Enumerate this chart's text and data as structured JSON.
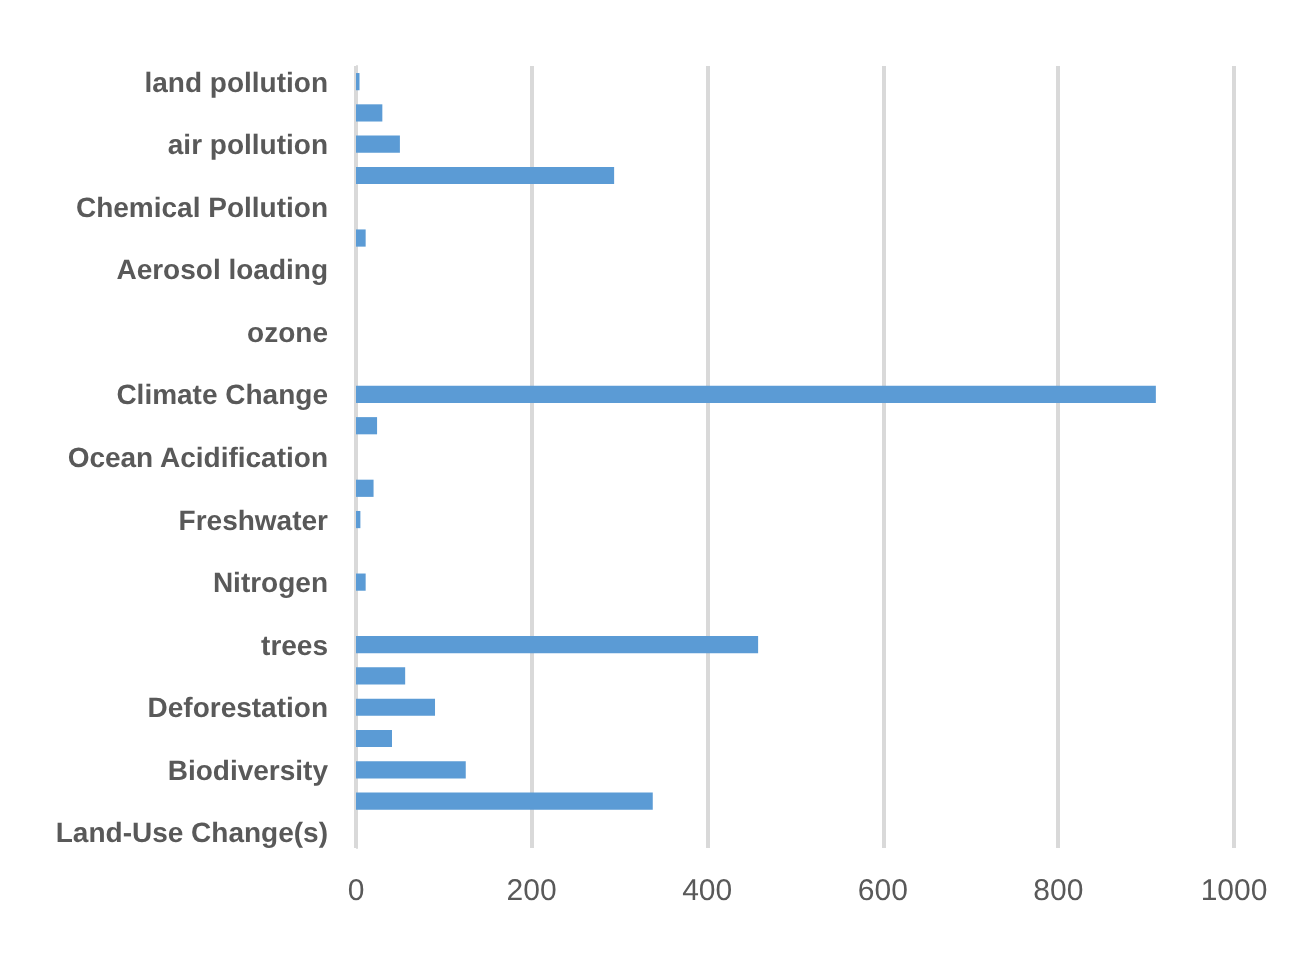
{
  "chart_data": {
    "type": "bar",
    "orientation": "horizontal",
    "categories": [
      "land pollution",
      null,
      "air pollution",
      null,
      "Chemical Pollution",
      null,
      "Aerosol loading",
      null,
      "ozone",
      null,
      "Climate Change",
      null,
      "Ocean Acidification",
      null,
      "Freshwater",
      null,
      "Nitrogen",
      null,
      "trees",
      null,
      "Deforestation",
      null,
      "Biodiversity",
      null,
      "Land-Use Change(s)"
    ],
    "values": [
      4,
      30,
      50,
      294,
      0,
      11,
      0,
      0,
      0,
      0,
      911,
      24,
      0,
      20,
      5,
      0,
      11,
      0,
      458,
      56,
      90,
      41,
      125,
      338,
      0
    ],
    "color": "#5b9bd5",
    "xlim": [
      0,
      1000
    ],
    "xticks": [
      0,
      200,
      400,
      600,
      800,
      1000
    ],
    "grid": "x"
  }
}
